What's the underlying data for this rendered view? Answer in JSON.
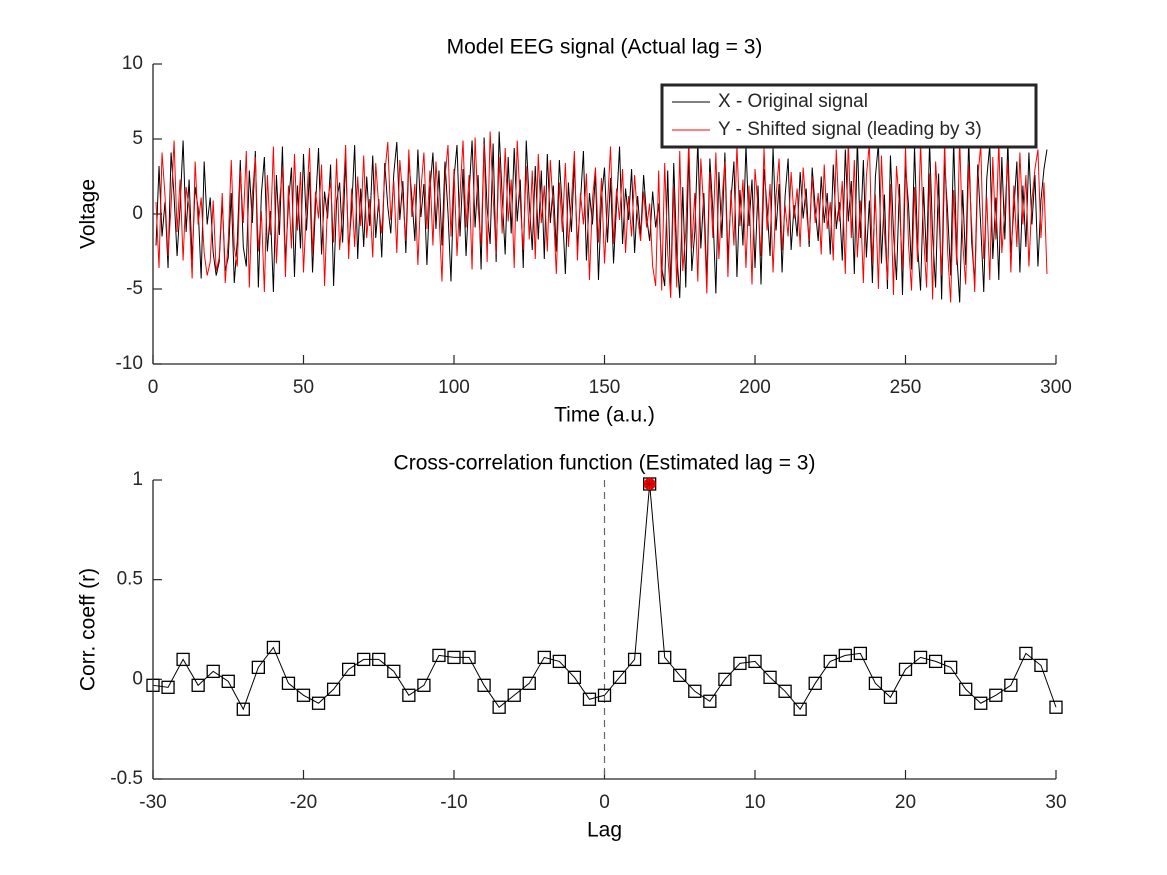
{
  "chart_data": [
    {
      "type": "line",
      "title": "Model EEG signal (Actual lag = 3)",
      "xlabel": "Time (a.u.)",
      "ylabel": "Voltage",
      "x": [
        1,
        2,
        3,
        4,
        5,
        6,
        7,
        8,
        9,
        10,
        11,
        12,
        13,
        14,
        15,
        16,
        17,
        18,
        19,
        20,
        21,
        22,
        23,
        24,
        25,
        26,
        27,
        28,
        29,
        30,
        31,
        32,
        33,
        34,
        35,
        36,
        37,
        38,
        39,
        40,
        41,
        42,
        43,
        44,
        45,
        46,
        47,
        48,
        49,
        50,
        51,
        52,
        53,
        54,
        55,
        56,
        57,
        58,
        59,
        60,
        61,
        62,
        63,
        64,
        65,
        66,
        67,
        68,
        69,
        70,
        71,
        72,
        73,
        74,
        75,
        76,
        77,
        78,
        79,
        80,
        81,
        82,
        83,
        84,
        85,
        86,
        87,
        88,
        89,
        90,
        91,
        92,
        93,
        94,
        95,
        96,
        97,
        98,
        99,
        100,
        101,
        102,
        103,
        104,
        105,
        106,
        107,
        108,
        109,
        110,
        111,
        112,
        113,
        114,
        115,
        116,
        117,
        118,
        119,
        120,
        121,
        122,
        123,
        124,
        125,
        126,
        127,
        128,
        129,
        130,
        131,
        132,
        133,
        134,
        135,
        136,
        137,
        138,
        139,
        140,
        141,
        142,
        143,
        144,
        145,
        146,
        147,
        148,
        149,
        150,
        151,
        152,
        153,
        154,
        155,
        156,
        157,
        158,
        159,
        160,
        161,
        162,
        163,
        164,
        165,
        166,
        167,
        168,
        169,
        170,
        171,
        172,
        173,
        174,
        175,
        176,
        177,
        178,
        179,
        180,
        181,
        182,
        183,
        184,
        185,
        186,
        187,
        188,
        189,
        190,
        191,
        192,
        193,
        194,
        195,
        196,
        197,
        198,
        199,
        200,
        201,
        202,
        203,
        204,
        205,
        206,
        207,
        208,
        209,
        210,
        211,
        212,
        213,
        214,
        215,
        216,
        217,
        218,
        219,
        220,
        221,
        222,
        223,
        224,
        225,
        226,
        227,
        228,
        229,
        230,
        231,
        232,
        233,
        234,
        235,
        236,
        237,
        238,
        239,
        240,
        241,
        242,
        243,
        244,
        245,
        246,
        247,
        248,
        249,
        250,
        251,
        252,
        253,
        254,
        255,
        256,
        257,
        258,
        259,
        260,
        261,
        262,
        263,
        264,
        265,
        266,
        267,
        268,
        269,
        270,
        271,
        272,
        273,
        274,
        275,
        276,
        277,
        278,
        279,
        280,
        281,
        282,
        283,
        284,
        285,
        286,
        287,
        288,
        289,
        290,
        291,
        292,
        293,
        294,
        295,
        296,
        297
      ],
      "series": [
        {
          "name": "X - Original signal",
          "color": "#000000",
          "values": [
            -2.1,
            3.2,
            -1.5,
            0.8,
            -3.6,
            4.1,
            1.2,
            -2.8,
            0.5,
            4.9,
            -1.2,
            2.3,
            -3.1,
            1.8,
            0.4,
            -4.3,
            3.5,
            -0.7,
            1.1,
            -2.6,
            -4.1,
            -3.2,
            0.9,
            -3.8,
            -2.9,
            1.4,
            -4.6,
            -1.8,
            3.6,
            -2.2,
            -3.5,
            2.9,
            -0.6,
            4.2,
            -4.9,
            1.3,
            3.8,
            -2.5,
            0.2,
            -5.2,
            2.6,
            -1.4,
            4.5,
            -3.3,
            0.7,
            3.1,
            -4.2,
            1.9,
            -2.3,
            4.0,
            -1.1,
            2.8,
            -3.9,
            0.6,
            4.4,
            -2.7,
            1.5,
            -0.3,
            3.3,
            -4.8,
            0.9,
            2.1,
            -1.9,
            3.7,
            -2.4,
            0.3,
            4.6,
            -3.0,
            1.7,
            -2.2,
            2.5,
            -0.8,
            3.9,
            -1.6,
            1.0,
            -2.9,
            3.4,
            0.5,
            -1.3,
            2.7,
            4.8,
            -0.4,
            2.2,
            -2.6,
            3.6,
            1.1,
            -1.8,
            4.3,
            -0.2,
            2.0,
            -3.4,
            1.6,
            4.1,
            -1.0,
            2.9,
            -2.1,
            3.5,
            0.1,
            -4.5,
            2.4,
            4.6,
            -1.5,
            3.0,
            -2.8,
            1.3,
            4.9,
            -0.9,
            2.6,
            -3.7,
            5.1,
            0.4,
            -2.0,
            4.7,
            -3.2,
            5.5,
            1.2,
            -2.7,
            3.8,
            -1.3,
            4.4,
            -0.5,
            2.3,
            -3.6,
            4.9,
            0.8,
            -2.4,
            3.2,
            -1.7,
            2.9,
            -3.0,
            4.0,
            -0.6,
            1.9,
            -2.5,
            3.6,
            0.3,
            -4.0,
            2.1,
            -1.2,
            3.4,
            -2.2,
            0.8,
            4.2,
            -3.1,
            1.4,
            -0.7,
            2.7,
            -4.4,
            1.0,
            3.1,
            -1.9,
            2.4,
            -3.3,
            0.6,
            4.5,
            -2.0,
            1.7,
            -0.4,
            3.0,
            -2.6,
            1.2,
            -1.5,
            2.6,
            -0.2,
            -1.8,
            1.5,
            -0.9,
            0.7,
            -3.5,
            -4.8,
            2.9,
            -5.1,
            3.4,
            -2.6,
            -5.6,
            1.8,
            -4.9,
            4.2,
            -3.8,
            -1.2,
            4.9,
            -2.3,
            1.4,
            -4.5,
            3.7,
            0.2,
            -5.3,
            2.8,
            -1.6,
            4.1,
            -3.0,
            0.9,
            3.5,
            -4.2,
            1.6,
            -2.1,
            4.6,
            -0.8,
            2.3,
            -3.6,
            1.9,
            -4.7,
            3.0,
            0.5,
            -2.8,
            4.4,
            -1.1,
            2.0,
            -3.9,
            1.2,
            3.7,
            -2.4,
            0.6,
            -1.5,
            2.8,
            -0.3,
            1.7,
            -2.2,
            3.1,
            0.4,
            -1.8,
            2.5,
            -0.6,
            1.4,
            -2.7,
            3.3,
            -1.0,
            0.8,
            -3.1,
            4.3,
            -0.5,
            2.2,
            -4.0,
            5.0,
            -1.6,
            3.6,
            -2.9,
            0.9,
            -4.6,
            2.5,
            4.7,
            -3.3,
            1.3,
            -5.0,
            3.9,
            -1.2,
            -4.4,
            2.0,
            -5.4,
            3.2,
            0.6,
            -3.7,
            4.5,
            -2.0,
            -5.1,
            1.8,
            -3.2,
            4.8,
            -1.4,
            -4.9,
            2.7,
            -5.7,
            3.5,
            0.1,
            -4.1,
            4.9,
            -2.5,
            -5.9,
            1.6,
            -3.4,
            5.0,
            -1.9,
            -4.7,
            3.3,
            -0.8,
            -5.2,
            2.4,
            4.6,
            -3.0,
            1.1,
            -4.4,
            3.8,
            -1.7,
            4.9,
            -2.6,
            0.3,
            3.5,
            -3.9,
            1.9,
            -2.2,
            4.1,
            -0.7,
            2.6,
            -3.5,
            0.9,
            3.0,
            4.3
          ]
        },
        {
          "name": "Y - Shifted signal (leading by 3)",
          "color": "#ff0000",
          "values": [
            0.8,
            -3.6,
            4.1,
            1.2,
            -2.8,
            0.5,
            4.9,
            -1.2,
            2.3,
            -3.1,
            1.8,
            0.4,
            -4.3,
            3.5,
            -0.7,
            1.1,
            -2.6,
            -4.1,
            -3.2,
            0.9,
            -3.8,
            -2.9,
            1.4,
            -4.6,
            -1.8,
            3.6,
            -2.2,
            -3.5,
            2.9,
            -0.6,
            4.2,
            -4.9,
            1.3,
            3.8,
            -2.5,
            0.2,
            -5.2,
            2.6,
            -1.4,
            4.5,
            -3.3,
            0.7,
            3.1,
            -4.2,
            1.9,
            -2.3,
            4.0,
            -1.1,
            2.8,
            -3.9,
            0.6,
            4.4,
            -2.7,
            1.5,
            -0.3,
            3.3,
            -4.8,
            0.9,
            2.1,
            -1.9,
            3.7,
            -2.4,
            0.3,
            4.6,
            -3.0,
            1.7,
            -2.2,
            2.5,
            -0.8,
            3.9,
            -1.6,
            1.0,
            -2.9,
            3.4,
            0.5,
            -1.3,
            2.7,
            4.8,
            -0.4,
            2.2,
            -2.6,
            3.6,
            1.1,
            -1.8,
            4.3,
            -0.2,
            2.0,
            -3.4,
            1.6,
            4.1,
            -1.0,
            2.9,
            -2.1,
            3.5,
            0.1,
            -4.5,
            2.4,
            4.6,
            -1.5,
            3.0,
            -2.8,
            1.3,
            4.9,
            -0.9,
            2.6,
            -3.7,
            5.1,
            0.4,
            -2.0,
            4.7,
            -3.2,
            5.5,
            1.2,
            -2.7,
            3.8,
            -1.3,
            4.4,
            -0.5,
            2.3,
            -3.6,
            4.9,
            0.8,
            -2.4,
            3.2,
            -1.7,
            2.9,
            -3.0,
            4.0,
            -0.6,
            1.9,
            -2.5,
            3.6,
            0.3,
            -4.0,
            2.1,
            -1.2,
            3.4,
            -2.2,
            0.8,
            4.2,
            -3.1,
            1.4,
            -0.7,
            2.7,
            -4.4,
            1.0,
            3.1,
            -1.9,
            2.4,
            -3.3,
            0.6,
            4.5,
            -2.0,
            1.7,
            -0.4,
            3.0,
            -2.6,
            1.2,
            -1.5,
            2.6,
            -0.2,
            -1.8,
            1.5,
            -0.9,
            0.7,
            -3.5,
            -4.8,
            2.9,
            -5.1,
            3.4,
            -2.6,
            -5.6,
            1.8,
            -4.9,
            4.2,
            -3.8,
            -1.2,
            4.9,
            -2.3,
            1.4,
            -4.5,
            3.7,
            0.2,
            -5.3,
            2.8,
            -1.6,
            4.1,
            -3.0,
            0.9,
            3.5,
            -4.2,
            1.6,
            -2.1,
            4.6,
            -0.8,
            2.3,
            -3.6,
            1.9,
            -4.7,
            3.0,
            0.5,
            -2.8,
            4.4,
            -1.1,
            2.0,
            -3.9,
            1.2,
            3.7,
            -2.4,
            0.6,
            -1.5,
            2.8,
            -0.3,
            1.7,
            -2.2,
            3.1,
            0.4,
            -1.8,
            2.5,
            -0.6,
            1.4,
            -2.7,
            3.3,
            -1.0,
            0.8,
            -3.1,
            4.3,
            -0.5,
            2.2,
            -4.0,
            5.0,
            -1.6,
            3.6,
            -2.9,
            0.9,
            -4.6,
            2.5,
            4.7,
            -3.3,
            1.3,
            -5.0,
            3.9,
            -1.2,
            -4.4,
            2.0,
            -5.4,
            3.2,
            0.6,
            -3.7,
            4.5,
            -2.0,
            -5.1,
            1.8,
            -3.2,
            4.8,
            -1.4,
            -4.9,
            2.7,
            -5.7,
            3.5,
            0.1,
            -4.1,
            4.9,
            -2.5,
            -5.9,
            1.6,
            -3.4,
            5.0,
            -1.9,
            -4.7,
            3.3,
            -0.8,
            -5.2,
            2.4,
            4.6,
            -3.0,
            1.1,
            -4.4,
            3.8,
            -1.7,
            4.9,
            -2.6,
            0.3,
            3.5,
            -3.9,
            1.9,
            -2.2,
            4.1,
            -0.7,
            2.6,
            -3.5,
            0.9,
            3.0,
            4.3,
            -1.6,
            2.1,
            -4.0
          ]
        }
      ],
      "xlim": [
        0,
        300
      ],
      "ylim": [
        -10,
        10
      ],
      "xticks": [
        0,
        50,
        100,
        150,
        200,
        250,
        300
      ],
      "yticks": [
        -10,
        -5,
        0,
        5,
        10
      ],
      "legend": "upper right"
    },
    {
      "type": "line",
      "title": "Cross-correlation function (Estimated lag = 3)",
      "xlabel": "Lag",
      "ylabel": "Corr. coeff (r)",
      "x": [
        -30,
        -29,
        -28,
        -27,
        -26,
        -25,
        -24,
        -23,
        -22,
        -21,
        -20,
        -19,
        -18,
        -17,
        -16,
        -15,
        -14,
        -13,
        -12,
        -11,
        -10,
        -9,
        -8,
        -7,
        -6,
        -5,
        -4,
        -3,
        -2,
        -1,
        0,
        1,
        2,
        3,
        4,
        5,
        6,
        7,
        8,
        9,
        10,
        11,
        12,
        13,
        14,
        15,
        16,
        17,
        18,
        19,
        20,
        21,
        22,
        23,
        24,
        25,
        26,
        27,
        28,
        29,
        30
      ],
      "values": [
        -0.03,
        -0.04,
        0.1,
        -0.03,
        0.04,
        -0.01,
        -0.15,
        0.06,
        0.16,
        -0.02,
        -0.08,
        -0.12,
        -0.05,
        0.05,
        0.1,
        0.1,
        0.04,
        -0.08,
        -0.03,
        0.12,
        0.11,
        0.11,
        -0.03,
        -0.14,
        -0.08,
        -0.02,
        0.11,
        0.09,
        0.01,
        -0.1,
        -0.08,
        0.01,
        0.1,
        0.98,
        0.11,
        0.02,
        -0.06,
        -0.11,
        0.0,
        0.08,
        0.09,
        0.01,
        -0.06,
        -0.15,
        -0.02,
        0.09,
        0.12,
        0.13,
        -0.02,
        -0.09,
        0.05,
        0.11,
        0.09,
        0.06,
        -0.05,
        -0.12,
        -0.08,
        -0.03,
        0.13,
        0.07,
        -0.14
      ],
      "color": "#000000",
      "marker": "square",
      "peak_color": "#ff0000",
      "vline": 0,
      "xlim": [
        -30,
        30
      ],
      "ylim": [
        -0.5,
        1
      ],
      "xticks": [
        -30,
        -20,
        -10,
        0,
        10,
        20,
        30
      ],
      "yticks": [
        -0.5,
        0,
        0.5,
        1
      ]
    }
  ]
}
